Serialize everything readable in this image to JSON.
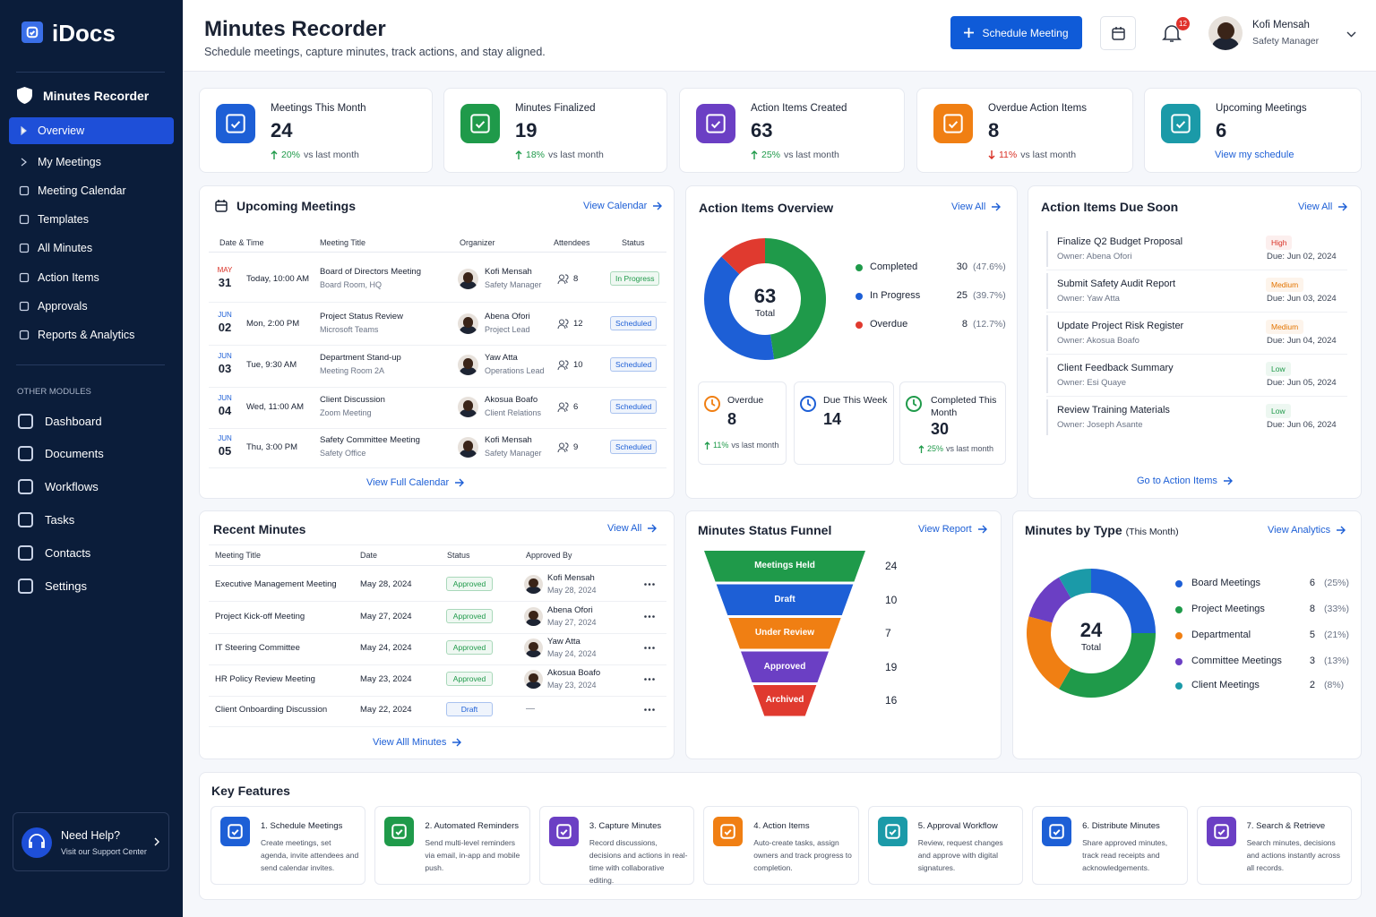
{
  "sidebar": {
    "brand": "iDocs",
    "section": "Minutes Recorder",
    "nav": [
      "Overview",
      "My Meetings",
      "Meeting Calendar",
      "Templates",
      "All Minutes",
      "Action Items",
      "Approvals",
      "Reports & Analytics"
    ],
    "other_label": "OTHER MODULES",
    "modules": [
      "Dashboard",
      "Documents",
      "Workflows",
      "Tasks",
      "Contacts",
      "Settings"
    ],
    "help": {
      "title": "Need Help?",
      "subtitle": "Visit our Support Center"
    }
  },
  "header": {
    "title": "Minutes Recorder",
    "subtitle": "Schedule meetings, capture minutes, track actions, and stay aligned.",
    "button": "Schedule Meeting",
    "notifications": 12,
    "user": {
      "name": "Kofi Mensah",
      "role": "Safety Manager"
    }
  },
  "stats": [
    {
      "label": "Meetings This Month",
      "value": 24,
      "change": "20%",
      "note": "vs last month",
      "trend": "up",
      "color": "#1d5fd6"
    },
    {
      "label": "Minutes Finalized",
      "value": 19,
      "change": "18%",
      "note": "vs last month",
      "trend": "up",
      "color": "#1f9a4a"
    },
    {
      "label": "Action Items Created",
      "value": 63,
      "change": "25%",
      "note": "vs last month",
      "trend": "up",
      "color": "#6b3fc4"
    },
    {
      "label": "Overdue Action Items",
      "value": 8,
      "change": "11%",
      "note": "vs last month",
      "trend": "down",
      "color": "#f07f13"
    },
    {
      "label": "Upcoming Meetings",
      "value": 6,
      "link": "View my schedule",
      "color": "#1b9aa8"
    }
  ],
  "upcoming": {
    "title": "Upcoming Meetings",
    "link": "View Calendar",
    "columns": [
      "Date & Time",
      "Meeting Title",
      "Organizer",
      "Attendees",
      "Status"
    ],
    "rows": [
      {
        "month": "MAY",
        "day": "31",
        "time": "Today, 10:00 AM",
        "title": "Board of Directors Meeting",
        "location": "Board Room, HQ",
        "organizer": "Kofi Mensah",
        "role": "Safety Manager",
        "attendees": 8,
        "status": "In Progress",
        "status_color": "#1f9a4a"
      },
      {
        "month": "JUN",
        "day": "02",
        "time": "Mon, 2:00 PM",
        "title": "Project Status Review",
        "location": "Microsoft Teams",
        "organizer": "Abena Ofori",
        "role": "Project Lead",
        "attendees": 12,
        "status": "Scheduled",
        "status_color": "#1d5fd6"
      },
      {
        "month": "JUN",
        "day": "03",
        "time": "Tue, 9:30 AM",
        "title": "Department Stand-up",
        "location": "Meeting Room 2A",
        "organizer": "Yaw Atta",
        "role": "Operations Lead",
        "attendees": 10,
        "status": "Scheduled",
        "status_color": "#1d5fd6"
      },
      {
        "month": "JUN",
        "day": "04",
        "time": "Wed, 11:00 AM",
        "title": "Client Discussion",
        "location": "Zoom Meeting",
        "organizer": "Akosua Boafo",
        "role": "Client Relations",
        "attendees": 6,
        "status": "Scheduled",
        "status_color": "#1d5fd6"
      },
      {
        "month": "JUN",
        "day": "05",
        "time": "Thu, 3:00 PM",
        "title": "Safety Committee Meeting",
        "location": "Safety Office",
        "organizer": "Kofi Mensah",
        "role": "Safety Manager",
        "attendees": 9,
        "status": "Scheduled",
        "status_color": "#1d5fd6"
      }
    ],
    "footer": "View Full Calendar"
  },
  "action_cards": [
    {
      "label": "Overdue",
      "value": 8,
      "change": "11%",
      "note": "vs last month",
      "color": "#f07f13"
    },
    {
      "label": "Due This Week",
      "value": 14,
      "color": "#1d5fd6"
    },
    {
      "label": "Completed This Month",
      "value": 30,
      "change": "25%",
      "note": "vs last month",
      "color": "#1f9a4a"
    }
  ],
  "due_soon": {
    "title": "Action Items Due Soon",
    "link": "View All",
    "items": [
      {
        "title": "Finalize Q2 Budget Proposal",
        "owner": "Owner: Abena Ofori",
        "priority": "High",
        "priority_color": "#d93025",
        "due": "Due: Jun 02, 2024"
      },
      {
        "title": "Submit Safety Audit Report",
        "owner": "Owner: Yaw Atta",
        "priority": "Medium",
        "priority_color": "#e37400",
        "due": "Due: Jun 03, 2024"
      },
      {
        "title": "Update Project Risk Register",
        "owner": "Owner: Akosua Boafo",
        "priority": "Medium",
        "priority_color": "#e37400",
        "due": "Due: Jun 04, 2024"
      },
      {
        "title": "Client Feedback Summary",
        "owner": "Owner: Esi Quaye",
        "priority": "Low",
        "priority_color": "#1f9a4a",
        "due": "Due: Jun 05, 2024"
      },
      {
        "title": "Review Training Materials",
        "owner": "Owner: Joseph Asante",
        "priority": "Low",
        "priority_color": "#1f9a4a",
        "due": "Due: Jun 06, 2024"
      }
    ],
    "footer": "Go to Action Items"
  },
  "recent_minutes": {
    "title": "Recent Minutes",
    "link": "View All",
    "columns": [
      "Meeting Title",
      "Date",
      "Status",
      "Approved By"
    ],
    "rows": [
      {
        "title": "Executive Management Meeting",
        "date": "May 28, 2024",
        "status": "Approved",
        "status_color": "#1f9a4a",
        "approver": "Kofi Mensah",
        "approved_on": "May 28, 2024"
      },
      {
        "title": "Project Kick-off Meeting",
        "date": "May 27, 2024",
        "status": "Approved",
        "status_color": "#1f9a4a",
        "approver": "Abena Ofori",
        "approved_on": "May 27, 2024"
      },
      {
        "title": "IT Steering Committee",
        "date": "May 24, 2024",
        "status": "Approved",
        "status_color": "#1f9a4a",
        "approver": "Yaw Atta",
        "approved_on": "May 24, 2024"
      },
      {
        "title": "HR Policy Review Meeting",
        "date": "May 23, 2024",
        "status": "Approved",
        "status_color": "#1f9a4a",
        "approver": "Akosua Boafo",
        "approved_on": "May 23, 2024"
      },
      {
        "title": "Client Onboarding Discussion",
        "date": "May 22, 2024",
        "status": "Draft",
        "status_color": "#1d5fd6",
        "approver": "—"
      }
    ],
    "footer": "View Alll Minutes"
  },
  "chart_data": [
    {
      "type": "donut",
      "title": "Action Items Overview",
      "link": "View All",
      "categories": [
        "Completed",
        "In Progress",
        "Overdue"
      ],
      "values": [
        30,
        25,
        8
      ],
      "share_labels": [
        "(47.6%)",
        "(39.7%)",
        "(12.7%)"
      ],
      "colors": [
        "#1f9a4a",
        "#1d5fd6",
        "#e03a2f"
      ],
      "total": 63,
      "center_label": "Total"
    },
    {
      "type": "funnel",
      "title": "Minutes Status Funnel",
      "link": "View Report",
      "categories": [
        "Meetings Held",
        "Draft",
        "Under Review",
        "Approved",
        "Archived"
      ],
      "values": [
        24,
        10,
        7,
        19,
        16
      ],
      "colors": [
        "#1f9a4a",
        "#1d5fd6",
        "#f07f13",
        "#6b3fc4",
        "#e03a2f"
      ]
    },
    {
      "type": "donut",
      "title": "Minutes by Type",
      "subtitle": "(This Month)",
      "link": "View Analytics",
      "categories": [
        "Board Meetings",
        "Project Meetings",
        "Departmental",
        "Committee Meetings",
        "Client Meetings"
      ],
      "values": [
        6,
        8,
        5,
        3,
        2
      ],
      "share_labels": [
        "(25%)",
        "(33%)",
        "(21%)",
        "(13%)",
        "(8%)"
      ],
      "colors": [
        "#1d5fd6",
        "#1f9a4a",
        "#f07f13",
        "#6b3fc4",
        "#1b9aa8"
      ],
      "total": 24,
      "center_label": "Total"
    }
  ],
  "features": {
    "title": "Key Features",
    "items": [
      {
        "title": "1. Schedule Meetings",
        "text": "Create meetings, set agenda, invite attendees and send calendar invites.",
        "color": "#1d5fd6"
      },
      {
        "title": "2. Automated Reminders",
        "text": "Send multi-level reminders via email, in-app and mobile push.",
        "color": "#1f9a4a"
      },
      {
        "title": "3. Capture Minutes",
        "text": "Record discussions, decisions and actions in real-time with collaborative editing.",
        "color": "#6b3fc4"
      },
      {
        "title": "4. Action Items",
        "text": "Auto-create tasks, assign owners and track progress to completion.",
        "color": "#f07f13"
      },
      {
        "title": "5. Approval Workflow",
        "text": "Review, request changes and approve with digital signatures.",
        "color": "#1b9aa8"
      },
      {
        "title": "6. Distribute Minutes",
        "text": "Share approved minutes, track read receipts and acknowledgements.",
        "color": "#1d5fd6"
      },
      {
        "title": "7. Search & Retrieve",
        "text": "Search minutes, decisions and actions instantly across all records.",
        "color": "#6b3fc4"
      }
    ]
  }
}
